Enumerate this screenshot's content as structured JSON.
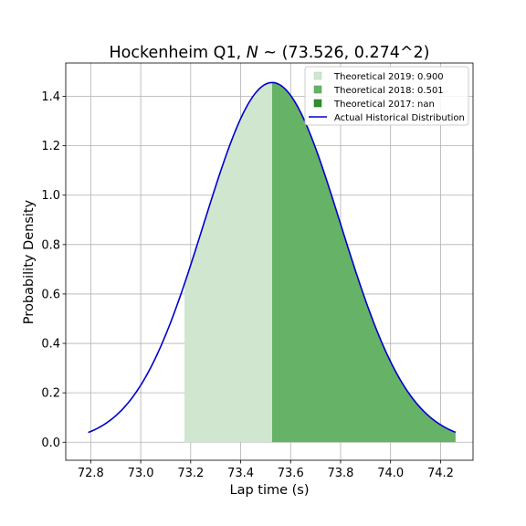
{
  "chart_data": {
    "type": "area",
    "title": "Hockenheim Q1, N ~ (73.526, 0.274^2)",
    "title_parts": {
      "prefix": "Hockenheim Q1, ",
      "n_symbol": "N",
      "suffix": " ~ (73.526, 0.274^2)"
    },
    "xlabel": "Lap time (s)",
    "ylabel": "Probability Density",
    "xlim": [
      72.7,
      74.33
    ],
    "ylim": [
      -0.073,
      1.535
    ],
    "xticks": [
      72.8,
      73.0,
      73.2,
      73.4,
      73.6,
      73.8,
      74.0,
      74.2
    ],
    "xtick_labels": [
      "72.8",
      "73.0",
      "73.2",
      "73.4",
      "73.6",
      "73.8",
      "74.0",
      "74.2"
    ],
    "yticks": [
      0.0,
      0.2,
      0.4,
      0.6,
      0.8,
      1.0,
      1.2,
      1.4
    ],
    "ytick_labels": [
      "0.0",
      "0.2",
      "0.4",
      "0.6",
      "0.8",
      "1.0",
      "1.2",
      "1.4"
    ],
    "grid": true,
    "legend_position": "top-right",
    "distribution": {
      "mean": 73.526,
      "std": 0.274,
      "x_min": 72.79,
      "x_max": 74.26
    },
    "series": [
      {
        "name": "Theoretical 2019: 0.900",
        "kind": "fill",
        "x_from": 73.175,
        "x_to": 74.26,
        "color": "#d0e6cf"
      },
      {
        "name": "Theoretical 2018: 0.501",
        "kind": "fill",
        "x_from": 73.526,
        "x_to": 74.26,
        "color": "#66b266"
      },
      {
        "name": "Theoretical 2017: nan",
        "kind": "fill",
        "x_from": null,
        "x_to": null,
        "color": "#2f8f2f"
      },
      {
        "name": "Actual Historical Distribution",
        "kind": "line",
        "color": "#0000cc"
      }
    ]
  }
}
